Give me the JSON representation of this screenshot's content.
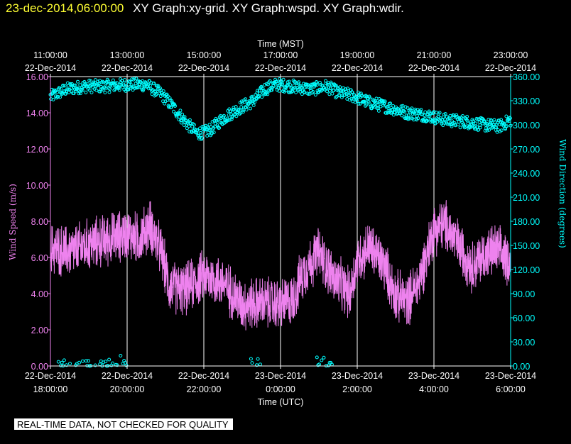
{
  "header": {
    "timestamp": "23-dec-2014,06:00:00",
    "graph_titles": "XY Graph:xy-grid.  XY Graph:wspd.  XY Graph:wdir."
  },
  "disclaimer": "REAL-TIME DATA, NOT CHECKED FOR QUALITY",
  "colors": {
    "wspd": "#ee82ee",
    "wdir": "#00ffff",
    "grid": "#ffffff",
    "timestamp": "#ffff33"
  },
  "chart_data": {
    "type": "line",
    "top_axis": {
      "label": "Time (MST)",
      "ticks": [
        {
          "hour": 0,
          "time": "11:00:00",
          "date": "22-Dec-2014"
        },
        {
          "hour": 2,
          "time": "13:00:00",
          "date": "22-Dec-2014"
        },
        {
          "hour": 4,
          "time": "15:00:00",
          "date": "22-Dec-2014"
        },
        {
          "hour": 6,
          "time": "17:00:00",
          "date": "22-Dec-2014"
        },
        {
          "hour": 8,
          "time": "19:00:00",
          "date": "22-Dec-2014"
        },
        {
          "hour": 10,
          "time": "21:00:00",
          "date": "22-Dec-2014"
        },
        {
          "hour": 12,
          "time": "23:00:00",
          "date": "22-Dec-2014"
        }
      ]
    },
    "bottom_axis": {
      "label": "Time (UTC)",
      "ticks": [
        {
          "hour": 0,
          "date": "22-Dec-2014",
          "time": "18:00:00"
        },
        {
          "hour": 2,
          "date": "22-Dec-2014",
          "time": "20:00:00"
        },
        {
          "hour": 4,
          "date": "22-Dec-2014",
          "time": "22:00:00"
        },
        {
          "hour": 6,
          "date": "23-Dec-2014",
          "time": "0:00:00"
        },
        {
          "hour": 8,
          "date": "23-Dec-2014",
          "time": "2:00:00"
        },
        {
          "hour": 10,
          "date": "23-Dec-2014",
          "time": "4:00:00"
        },
        {
          "hour": 12,
          "date": "23-Dec-2014",
          "time": "6:00:00"
        }
      ]
    },
    "x_range_hours": [
      0,
      12
    ],
    "grid": true,
    "left_axis": {
      "label": "Wind Speed (m/s)",
      "ylim": [
        0,
        16
      ],
      "ticks": [
        "0.00",
        "2.00",
        "4.00",
        "6.00",
        "8.00",
        "10.00",
        "12.00",
        "14.00",
        "16.00"
      ]
    },
    "right_axis": {
      "label": "Wind Direction (degrees)",
      "ylim": [
        0,
        360
      ],
      "ticks": [
        "0.00",
        "30.00",
        "60.00",
        "90.00",
        "120.00",
        "150.00",
        "180.00",
        "210.00",
        "240.00",
        "270.00",
        "300.00",
        "330.00",
        "360.00"
      ]
    },
    "series": [
      {
        "name": "Wind Speed (m/s)",
        "style": "line",
        "axis": "left",
        "x_hours": [
          0,
          0.5,
          1.0,
          1.5,
          2.0,
          2.3,
          2.6,
          2.9,
          3.1,
          3.5,
          4.0,
          4.5,
          5.0,
          5.5,
          6.0,
          6.3,
          6.6,
          7.0,
          7.4,
          7.8,
          8.0,
          8.3,
          8.7,
          9.0,
          9.3,
          9.6,
          10.0,
          10.3,
          10.6,
          11.0,
          11.3,
          11.6,
          12.0
        ],
        "values": [
          6.5,
          6.3,
          6.7,
          7.0,
          7.3,
          7.0,
          7.8,
          6.2,
          4.4,
          4.2,
          5.0,
          4.6,
          3.4,
          3.5,
          3.4,
          3.6,
          5.2,
          6.3,
          4.8,
          4.0,
          5.8,
          6.6,
          5.6,
          3.9,
          3.6,
          4.6,
          7.6,
          7.8,
          6.8,
          5.5,
          6.1,
          6.4,
          5.8
        ],
        "noise": 1.2
      },
      {
        "name": "Wind Direction (degrees)",
        "style": "scatter",
        "axis": "right",
        "x_hours": [
          0,
          0.4,
          0.9,
          1.4,
          2.0,
          2.5,
          2.9,
          3.2,
          3.5,
          3.8,
          4.0,
          4.2,
          4.5,
          4.9,
          5.3,
          5.6,
          5.9,
          6.3,
          6.8,
          7.2,
          7.5,
          7.9,
          8.3,
          8.8,
          9.3,
          9.8,
          10.3,
          10.8,
          11.3,
          11.7,
          12.0
        ],
        "values": [
          335,
          344,
          348,
          348,
          350,
          350,
          338,
          322,
          305,
          290,
          290,
          295,
          308,
          320,
          330,
          345,
          350,
          348,
          344,
          348,
          340,
          336,
          328,
          322,
          315,
          312,
          306,
          304,
          300,
          298,
          306
        ],
        "noise": 8,
        "near_zero_clusters_hours": [
          [
            0.15,
            2.0
          ],
          [
            5.2,
            5.5
          ],
          [
            6.95,
            7.4
          ]
        ]
      }
    ]
  }
}
